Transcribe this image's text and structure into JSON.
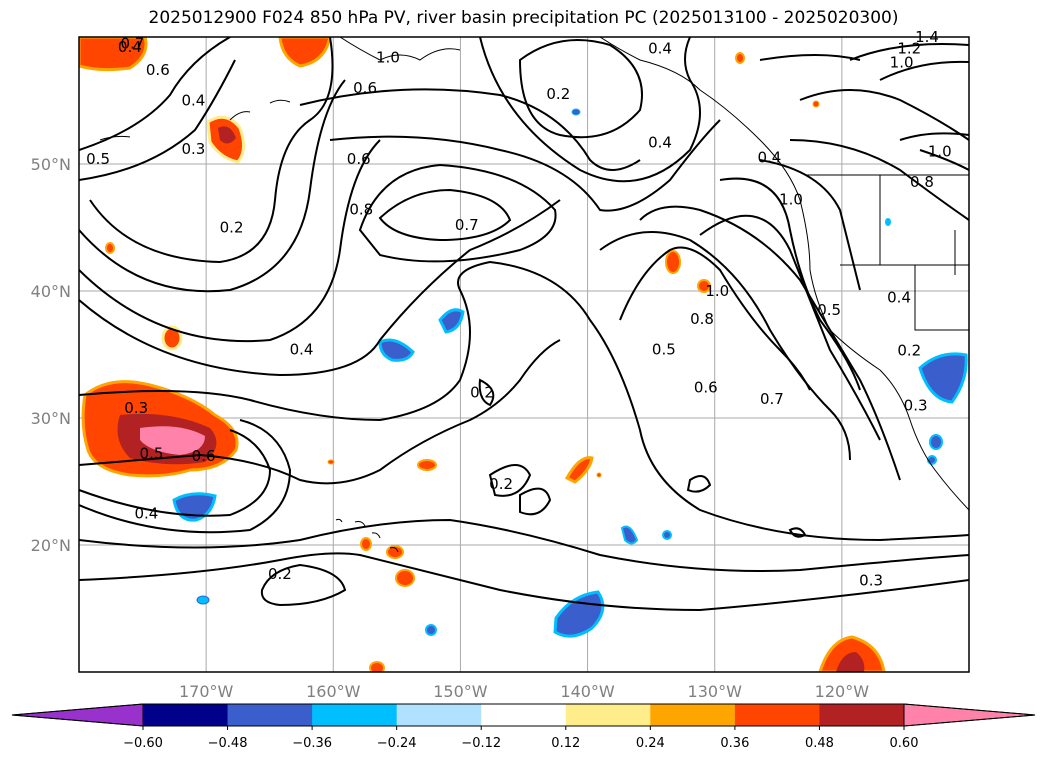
{
  "title": "2025012900 F024 850 hPa PV, river basin precipitation PC (2025013100 - 2025020300)",
  "map": {
    "lon_range": [
      -180,
      -110
    ],
    "lat_range": [
      10,
      60
    ],
    "lat_ticks": [
      {
        "value": 20,
        "label": "20°N"
      },
      {
        "value": 30,
        "label": "30°N"
      },
      {
        "value": 40,
        "label": "40°N"
      },
      {
        "value": 50,
        "label": "50°N"
      }
    ],
    "lon_ticks": [
      {
        "value": -170,
        "label": "170°W"
      },
      {
        "value": -160,
        "label": "160°W"
      },
      {
        "value": -150,
        "label": "150°W"
      },
      {
        "value": -140,
        "label": "140°W"
      },
      {
        "value": -130,
        "label": "130°W"
      },
      {
        "value": -120,
        "label": "120°W"
      }
    ],
    "grid": true,
    "contour_labels": [
      {
        "text": "0.2",
        "lon": -168,
        "lat": 45.0
      },
      {
        "text": "0.4",
        "lon": -171,
        "lat": 55.0
      },
      {
        "text": "0.6",
        "lon": -158,
        "lat": 50.4
      },
      {
        "text": "0.8",
        "lon": -157.8,
        "lat": 46.4
      },
      {
        "text": "0.7",
        "lon": -149.5,
        "lat": 45.2
      },
      {
        "text": "0.6",
        "lon": -157.5,
        "lat": 56.0
      },
      {
        "text": "1.0",
        "lon": -155.7,
        "lat": 58.4
      },
      {
        "text": "0.2",
        "lon": -142.3,
        "lat": 55.5
      },
      {
        "text": "0.4",
        "lon": -134.3,
        "lat": 51.7
      },
      {
        "text": "0.4",
        "lon": -134.3,
        "lat": 59.1
      },
      {
        "text": "1.0",
        "lon": -115.3,
        "lat": 58.0
      },
      {
        "text": "1.2",
        "lon": -114.7,
        "lat": 59.1
      },
      {
        "text": "1.4",
        "lon": -113.3,
        "lat": 60.0
      },
      {
        "text": "1.0",
        "lon": -124.0,
        "lat": 47.2
      },
      {
        "text": "0.4",
        "lon": -176.0,
        "lat": 59.2
      },
      {
        "text": "0.7",
        "lon": -175.8,
        "lat": 59.5
      },
      {
        "text": "0.6",
        "lon": -173.8,
        "lat": 57.4
      },
      {
        "text": "0.3",
        "lon": -171.0,
        "lat": 51.2
      },
      {
        "text": "0.5",
        "lon": -178.5,
        "lat": 50.4
      },
      {
        "text": "1.0",
        "lon": -112.3,
        "lat": 51.0
      },
      {
        "text": "0.8",
        "lon": -113.7,
        "lat": 48.6
      },
      {
        "text": "0.4",
        "lon": -125.7,
        "lat": 50.5
      },
      {
        "text": "0.4",
        "lon": -115.5,
        "lat": 39.5
      },
      {
        "text": "0.5",
        "lon": -121.0,
        "lat": 38.5
      },
      {
        "text": "0.2",
        "lon": -114.7,
        "lat": 35.3
      },
      {
        "text": "0.3",
        "lon": -114.2,
        "lat": 31.0
      },
      {
        "text": "0.4",
        "lon": -162.5,
        "lat": 35.4
      },
      {
        "text": "0.2",
        "lon": -148.3,
        "lat": 32.0
      },
      {
        "text": "0.5",
        "lon": -134.0,
        "lat": 35.4
      },
      {
        "text": "0.8",
        "lon": -131.0,
        "lat": 37.8
      },
      {
        "text": "0.6",
        "lon": -130.7,
        "lat": 32.4
      },
      {
        "text": "1.0",
        "lon": -129.8,
        "lat": 40.0
      },
      {
        "text": "0.7",
        "lon": -125.5,
        "lat": 31.5
      },
      {
        "text": "0.3",
        "lon": -175.5,
        "lat": 30.8
      },
      {
        "text": "0.5",
        "lon": -174.3,
        "lat": 27.2
      },
      {
        "text": "0.6",
        "lon": -170.2,
        "lat": 27.0
      },
      {
        "text": "0.4",
        "lon": -174.7,
        "lat": 22.5
      },
      {
        "text": "0.2",
        "lon": -146.8,
        "lat": 24.8
      },
      {
        "text": "0.2",
        "lon": -164.2,
        "lat": 17.7
      },
      {
        "text": "0.3",
        "lon": -117.7,
        "lat": 17.2
      }
    ]
  },
  "colorbar": {
    "tick_labels": [
      "−0.60",
      "−0.48",
      "−0.36",
      "−0.24",
      "−0.12",
      "0.12",
      "0.24",
      "0.36",
      "0.48",
      "0.60"
    ],
    "colors": [
      "#9932cc",
      "#00008b",
      "#3a5fcd",
      "#00bfff",
      "#b0e2ff",
      "#ffffff",
      "#ffec8b",
      "#ffa500",
      "#ff4500",
      "#b22222",
      "#ff82ab"
    ]
  },
  "map_ticks_color": "#808080"
}
